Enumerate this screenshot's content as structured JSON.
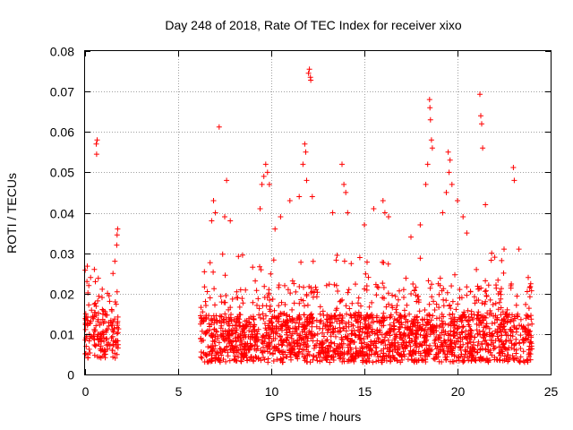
{
  "chart_data": {
    "type": "scatter",
    "title": "Day 248 of 2018, Rate Of TEC Index for receiver xixo",
    "xlabel": "GPS time / hours",
    "ylabel": "ROTI / TECUs",
    "xlim": [
      0,
      25
    ],
    "ylim": [
      0,
      0.08
    ],
    "x_ticks": [
      0,
      5,
      10,
      15,
      20,
      25
    ],
    "x_tick_labels": [
      "0",
      "5",
      "10",
      "15",
      "20",
      "25"
    ],
    "y_ticks": [
      0,
      0.01,
      0.02,
      0.03,
      0.04,
      0.05,
      0.06,
      0.07,
      0.08
    ],
    "y_tick_labels": [
      "0",
      "0.01",
      "0.02",
      "0.03",
      "0.04",
      "0.05",
      "0.06",
      "0.07",
      "0.08"
    ],
    "grid": true,
    "marker": "+",
    "color": "#ff0000",
    "series": [
      {
        "segments": [
          {
            "x_range": [
              0.0,
              1.8
            ],
            "base_range": [
              0.004,
              0.016
            ],
            "spike_max": 0.027,
            "density": 170
          },
          {
            "x_range": [
              6.2,
              24.0
            ],
            "base_range": [
              0.003,
              0.015
            ],
            "spike_max": 0.03,
            "density": 2100
          }
        ],
        "points": [
          [
            0.1,
            0.023
          ],
          [
            0.2,
            0.022
          ],
          [
            0.3,
            0.024
          ],
          [
            0.5,
            0.026
          ],
          [
            0.6,
            0.057
          ],
          [
            0.62,
            0.0545
          ],
          [
            0.65,
            0.058
          ],
          [
            1.5,
            0.025
          ],
          [
            1.6,
            0.028
          ],
          [
            1.7,
            0.032
          ],
          [
            1.72,
            0.0345
          ],
          [
            1.75,
            0.036
          ],
          [
            6.8,
            0.038
          ],
          [
            6.9,
            0.043
          ],
          [
            7.0,
            0.04
          ],
          [
            7.2,
            0.0612
          ],
          [
            7.5,
            0.039
          ],
          [
            7.6,
            0.048
          ],
          [
            7.8,
            0.038
          ],
          [
            9.4,
            0.041
          ],
          [
            9.5,
            0.047
          ],
          [
            9.6,
            0.049
          ],
          [
            9.7,
            0.052
          ],
          [
            9.8,
            0.05
          ],
          [
            9.9,
            0.047
          ],
          [
            10.2,
            0.036
          ],
          [
            10.5,
            0.039
          ],
          [
            11.0,
            0.043
          ],
          [
            11.5,
            0.044
          ],
          [
            11.7,
            0.052
          ],
          [
            11.8,
            0.057
          ],
          [
            11.85,
            0.055
          ],
          [
            11.9,
            0.048
          ],
          [
            12.0,
            0.0745
          ],
          [
            12.05,
            0.0755
          ],
          [
            12.1,
            0.0735
          ],
          [
            12.12,
            0.0728
          ],
          [
            12.2,
            0.044
          ],
          [
            13.3,
            0.04
          ],
          [
            13.8,
            0.052
          ],
          [
            13.9,
            0.047
          ],
          [
            14.0,
            0.045
          ],
          [
            14.1,
            0.04
          ],
          [
            15.0,
            0.037
          ],
          [
            15.5,
            0.041
          ],
          [
            16.0,
            0.043
          ],
          [
            16.1,
            0.04
          ],
          [
            16.3,
            0.039
          ],
          [
            17.5,
            0.034
          ],
          [
            18.0,
            0.037
          ],
          [
            18.3,
            0.047
          ],
          [
            18.4,
            0.052
          ],
          [
            18.5,
            0.068
          ],
          [
            18.52,
            0.066
          ],
          [
            18.55,
            0.063
          ],
          [
            18.6,
            0.058
          ],
          [
            18.65,
            0.056
          ],
          [
            19.2,
            0.04
          ],
          [
            19.4,
            0.045
          ],
          [
            19.5,
            0.055
          ],
          [
            19.55,
            0.05
          ],
          [
            19.6,
            0.053
          ],
          [
            19.7,
            0.047
          ],
          [
            20.0,
            0.043
          ],
          [
            20.3,
            0.039
          ],
          [
            20.5,
            0.035
          ],
          [
            21.2,
            0.0693
          ],
          [
            21.25,
            0.064
          ],
          [
            21.3,
            0.062
          ],
          [
            21.35,
            0.056
          ],
          [
            21.5,
            0.042
          ],
          [
            22.0,
            0.029
          ],
          [
            22.5,
            0.031
          ],
          [
            23.0,
            0.0512
          ],
          [
            23.05,
            0.048
          ],
          [
            23.3,
            0.031
          ],
          [
            23.8,
            0.024
          ]
        ]
      }
    ]
  }
}
